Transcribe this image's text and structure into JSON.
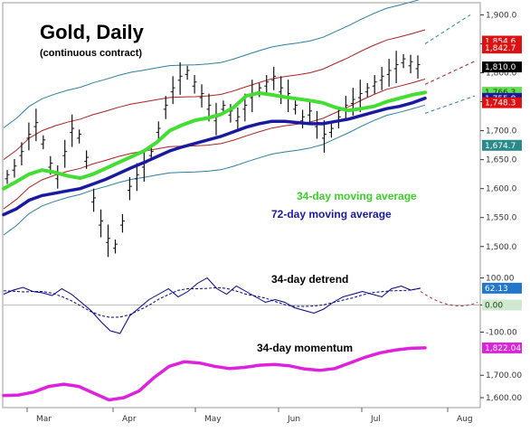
{
  "colors": {
    "background": "#ffffff",
    "bars": "#111111",
    "ma34": "#44dd33",
    "ma72": "#1a1aa0",
    "envelope_inner": "#aa2222",
    "envelope_outer": "#2a7fa0",
    "detrend": "#000080",
    "momentum": "#dd22dd",
    "badge_red": "#dd1111",
    "badge_black": "#000000",
    "badge_green": "#66dd55",
    "badge_blue": "#1a1aa0",
    "badge_teal": "#2a8a8a",
    "badge_light_blue": "#2277cc",
    "badge_light_gray": "#cfe8cf",
    "badge_magenta": "#dd22dd"
  },
  "chart_data": [
    {
      "type": "line",
      "title": "Gold, Daily",
      "subtitle": "(continuous contract)",
      "ylim": [
        1470,
        1910
      ],
      "yticks": [
        "1,900.0",
        "1,850.0",
        "1,800.0",
        "1,750.0",
        "1,700.0",
        "1,650.0",
        "1,600.0",
        "1,550.0",
        "1,500.0"
      ],
      "ytick_values": [
        1900,
        1850,
        1800,
        1750,
        1700,
        1650,
        1600,
        1550,
        1500
      ],
      "xlabels": [
        "Mar",
        "Apr",
        "May",
        "Jun",
        "Jul",
        "Aug"
      ],
      "legend": [
        "34-day moving average",
        "72-day moving average"
      ],
      "badges": [
        {
          "text": "1,854.6",
          "color": "badge_red",
          "value": 1854.6
        },
        {
          "text": "1,842.7",
          "color": "badge_red",
          "value": 1842.7
        },
        {
          "text": "1,810.0",
          "color": "badge_black",
          "value": 1810.0
        },
        {
          "text": "1,766.3",
          "color": "badge_green",
          "value": 1766.3
        },
        {
          "text": "1,755.8",
          "color": "badge_blue",
          "value": 1755.8
        },
        {
          "text": "1,748.3",
          "color": "badge_red",
          "value": 1748.3
        },
        {
          "text": "1,674.7",
          "color": "badge_teal",
          "value": 1674.7
        }
      ],
      "series": [
        {
          "name": "34-day moving average",
          "color": "ma34",
          "values": [
            1600,
            1612,
            1625,
            1632,
            1628,
            1622,
            1618,
            1625,
            1635,
            1645,
            1655,
            1665,
            1680,
            1700,
            1710,
            1718,
            1722,
            1728,
            1740,
            1760,
            1765,
            1762,
            1758,
            1755,
            1752,
            1748,
            1740,
            1735,
            1738,
            1742,
            1750,
            1756,
            1762,
            1766
          ]
        },
        {
          "name": "72-day moving average",
          "color": "ma72",
          "values": [
            1555,
            1565,
            1580,
            1588,
            1592,
            1596,
            1600,
            1608,
            1616,
            1626,
            1636,
            1645,
            1655,
            1665,
            1672,
            1678,
            1684,
            1690,
            1698,
            1706,
            1712,
            1716,
            1716,
            1714,
            1712,
            1712,
            1716,
            1720,
            1726,
            1732,
            1738,
            1742,
            1748,
            1756
          ]
        }
      ],
      "bars": [
        1620,
        1635,
        1660,
        1690,
        1710,
        1680,
        1640,
        1620,
        1660,
        1700,
        1690,
        1650,
        1580,
        1540,
        1510,
        1500,
        1540,
        1600,
        1620,
        1640,
        1660,
        1700,
        1740,
        1770,
        1790,
        1800,
        1780,
        1760,
        1740,
        1720,
        1740,
        1730,
        1720,
        1740,
        1760,
        1770,
        1780,
        1790,
        1770,
        1760,
        1740,
        1720,
        1730,
        1710,
        1690,
        1700,
        1720,
        1740,
        1750,
        1760,
        1770,
        1780,
        1790,
        1800,
        1810,
        1820,
        1815,
        1810
      ]
    },
    {
      "type": "line",
      "title": "34-day detrend",
      "ylim": [
        -115,
        125
      ],
      "yticks": [
        "100.00",
        "0.00",
        "-100.00"
      ],
      "ytick_values": [
        100,
        0,
        -100
      ],
      "badges": [
        {
          "text": "62.13",
          "color": "badge_light_blue",
          "value": 62.13
        },
        {
          "text": "0.00",
          "color": "badge_light_gray",
          "value": 0
        }
      ],
      "series": [
        {
          "name": "34-day detrend",
          "color": "detrend",
          "values": [
            40,
            55,
            65,
            50,
            45,
            35,
            60,
            40,
            10,
            -20,
            -60,
            -95,
            -105,
            -40,
            -10,
            20,
            40,
            60,
            30,
            50,
            80,
            100,
            60,
            40,
            70,
            50,
            30,
            10,
            20,
            10,
            -10,
            -20,
            -30,
            -15,
            10,
            30,
            40,
            50,
            40,
            30,
            60,
            70,
            55,
            62
          ]
        }
      ]
    },
    {
      "type": "line",
      "title": "34-day momentum",
      "ylim": [
        1580,
        1850
      ],
      "yticks": [
        "1,700.00",
        "1,600.00"
      ],
      "ytick_values": [
        1700,
        1600
      ],
      "badges": [
        {
          "text": "1,822.04",
          "color": "badge_magenta",
          "value": 1822.04
        }
      ],
      "series": [
        {
          "name": "34-day momentum",
          "color": "momentum",
          "values": [
            1610,
            1612,
            1625,
            1650,
            1660,
            1650,
            1620,
            1590,
            1600,
            1630,
            1690,
            1740,
            1760,
            1755,
            1740,
            1730,
            1735,
            1745,
            1748,
            1742,
            1728,
            1722,
            1730,
            1755,
            1780,
            1800,
            1812,
            1820,
            1822
          ]
        }
      ]
    }
  ]
}
